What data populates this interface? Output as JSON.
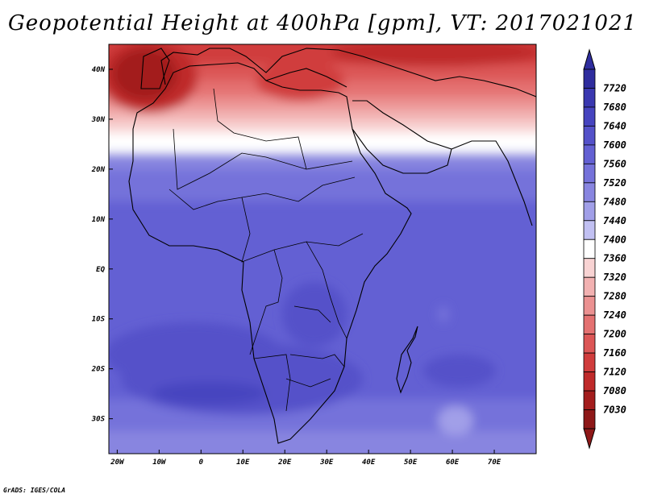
{
  "title": "Geopotential Height at 400hPa [gpm], VT: 2017021021",
  "footer": "GrADS: IGES/COLA",
  "map": {
    "lon_range": [
      -22,
      80
    ],
    "lat_range": [
      -37,
      45
    ],
    "lon_ticks": [
      {
        "value": -20,
        "label": "20W"
      },
      {
        "value": -10,
        "label": "10W"
      },
      {
        "value": 0,
        "label": "0"
      },
      {
        "value": 10,
        "label": "10E"
      },
      {
        "value": 20,
        "label": "20E"
      },
      {
        "value": 30,
        "label": "30E"
      },
      {
        "value": 40,
        "label": "40E"
      },
      {
        "value": 50,
        "label": "50E"
      },
      {
        "value": 60,
        "label": "60E"
      },
      {
        "value": 70,
        "label": "70E"
      }
    ],
    "lat_ticks": [
      {
        "value": 40,
        "label": "40N"
      },
      {
        "value": 30,
        "label": "30N"
      },
      {
        "value": 20,
        "label": "20N"
      },
      {
        "value": 10,
        "label": "10N"
      },
      {
        "value": 0,
        "label": "EQ"
      },
      {
        "value": -10,
        "label": "10S"
      },
      {
        "value": -20,
        "label": "20S"
      },
      {
        "value": -30,
        "label": "30S"
      }
    ]
  },
  "colorbar": {
    "levels": [
      "7720",
      "7680",
      "7640",
      "7600",
      "7560",
      "7520",
      "7480",
      "7440",
      "7400",
      "7360",
      "7320",
      "7280",
      "7240",
      "7200",
      "7160",
      "7120",
      "7080",
      "7030"
    ],
    "colors": [
      "#2f2d9e",
      "#3a38b0",
      "#4644bf",
      "#5451c9",
      "#6360d3",
      "#7572da",
      "#8885e0",
      "#a19fe8",
      "#c1c0f2",
      "#ffffff",
      "#f8d3d3",
      "#f2b1b1",
      "#eb9191",
      "#e47171",
      "#dc5656",
      "#d03c3c",
      "#bf2a2a",
      "#a31d1d",
      "#8e1818"
    ]
  }
}
